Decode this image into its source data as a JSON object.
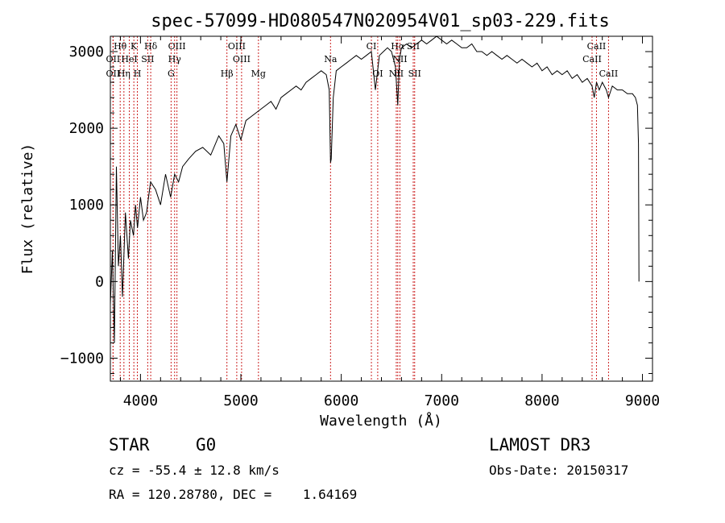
{
  "chart_data": {
    "type": "line",
    "title": "spec-57099-HD080547N020954V01_sp03-229.fits",
    "xlabel": "Wavelength (Å)",
    "ylabel": "Flux (relative)",
    "xlim": [
      3700,
      9100
    ],
    "ylim": [
      -1300,
      3200
    ],
    "xticks": [
      4000,
      5000,
      6000,
      7000,
      8000,
      9000
    ],
    "yticks": [
      -1000,
      0,
      1000,
      2000,
      3000
    ],
    "series": [
      {
        "name": "flux",
        "x": [
          3700,
          3720,
          3740,
          3760,
          3780,
          3800,
          3820,
          3850,
          3880,
          3900,
          3930,
          3950,
          3970,
          4000,
          4030,
          4060,
          4100,
          4150,
          4200,
          4250,
          4300,
          4340,
          4380,
          4420,
          4480,
          4550,
          4620,
          4700,
          4780,
          4830,
          4861,
          4900,
          4950,
          5000,
          5050,
          5100,
          5150,
          5200,
          5250,
          5300,
          5350,
          5400,
          5450,
          5500,
          5550,
          5600,
          5650,
          5700,
          5750,
          5800,
          5850,
          5880,
          5893,
          5900,
          5920,
          5950,
          6000,
          6050,
          6100,
          6150,
          6200,
          6250,
          6300,
          6340,
          6380,
          6420,
          6460,
          6500,
          6540,
          6563,
          6580,
          6600,
          6650,
          6700,
          6750,
          6800,
          6850,
          6900,
          6950,
          7000,
          7050,
          7100,
          7150,
          7200,
          7250,
          7300,
          7350,
          7400,
          7450,
          7500,
          7550,
          7600,
          7650,
          7700,
          7750,
          7800,
          7850,
          7900,
          7950,
          8000,
          8050,
          8100,
          8150,
          8200,
          8250,
          8300,
          8350,
          8400,
          8450,
          8498,
          8520,
          8542,
          8570,
          8600,
          8640,
          8662,
          8700,
          8750,
          8800,
          8850,
          8900,
          8930,
          8950,
          8960,
          8965
        ],
        "y": [
          -300,
          400,
          -800,
          1500,
          200,
          600,
          -200,
          900,
          300,
          800,
          600,
          1000,
          700,
          1100,
          800,
          900,
          1300,
          1200,
          1000,
          1400,
          1100,
          1400,
          1300,
          1500,
          1600,
          1700,
          1750,
          1650,
          1900,
          1800,
          1300,
          1900,
          2050,
          1850,
          2100,
          2150,
          2200,
          2250,
          2300,
          2350,
          2250,
          2400,
          2450,
          2500,
          2550,
          2500,
          2600,
          2650,
          2700,
          2750,
          2700,
          2500,
          1550,
          1600,
          2400,
          2750,
          2800,
          2850,
          2900,
          2950,
          2900,
          2950,
          3000,
          2500,
          2950,
          3000,
          3050,
          3000,
          2800,
          2300,
          2900,
          3050,
          3100,
          3050,
          3100,
          3150,
          3100,
          3150,
          3200,
          3150,
          3100,
          3150,
          3100,
          3050,
          3050,
          3100,
          3000,
          3000,
          2950,
          3000,
          2950,
          2900,
          2950,
          2900,
          2850,
          2900,
          2850,
          2800,
          2850,
          2750,
          2800,
          2700,
          2750,
          2700,
          2750,
          2650,
          2700,
          2600,
          2650,
          2550,
          2400,
          2600,
          2500,
          2600,
          2500,
          2400,
          2550,
          2500,
          2500,
          2450,
          2450,
          2400,
          2300,
          1800,
          0
        ]
      }
    ],
    "lines": [
      {
        "label": "Hθ",
        "x": 3798,
        "row": 0
      },
      {
        "label": "K",
        "x": 3934,
        "row": 0
      },
      {
        "label": "Hδ",
        "x": 4102,
        "row": 0
      },
      {
        "label": "OIII",
        "x": 4363,
        "row": 0
      },
      {
        "label": "OIII",
        "x": 4959,
        "row": 0
      },
      {
        "label": "CI",
        "x": 6300,
        "row": 0
      },
      {
        "label": "Hα",
        "x": 6563,
        "row": 0
      },
      {
        "label": "SII",
        "x": 6717,
        "row": 0
      },
      {
        "label": "CaII",
        "x": 8542,
        "row": 0
      },
      {
        "label": "OII",
        "x": 3727,
        "row": 1
      },
      {
        "label": "HeI",
        "x": 3889,
        "row": 1
      },
      {
        "label": "SII",
        "x": 4072,
        "row": 1
      },
      {
        "label": "Hγ",
        "x": 4340,
        "row": 1
      },
      {
        "label": "OIII",
        "x": 5007,
        "row": 1
      },
      {
        "label": "Na",
        "x": 5893,
        "row": 1
      },
      {
        "label": "NII",
        "x": 6584,
        "row": 1
      },
      {
        "label": "CaII",
        "x": 8498,
        "row": 1
      },
      {
        "label": "OII",
        "x": 3727,
        "row": 2
      },
      {
        "label": "Hη",
        "x": 3835,
        "row": 2
      },
      {
        "label": "H",
        "x": 3969,
        "row": 2
      },
      {
        "label": "G",
        "x": 4305,
        "row": 2
      },
      {
        "label": "Hβ",
        "x": 4861,
        "row": 2
      },
      {
        "label": "Mg",
        "x": 5175,
        "row": 2
      },
      {
        "label": "OI",
        "x": 6363,
        "row": 2
      },
      {
        "label": "NII",
        "x": 6548,
        "row": 2
      },
      {
        "label": "SII",
        "x": 6731,
        "row": 2
      },
      {
        "label": "CaII",
        "x": 8662,
        "row": 2
      }
    ]
  },
  "info": {
    "class": "STAR",
    "subclass": "G0",
    "survey": "LAMOST DR3",
    "cz": "cz = -55.4 ± 12.8 km/s",
    "obs_date": "Obs-Date: 20150317",
    "coords": "RA = 120.28780, DEC =    1.64169"
  }
}
